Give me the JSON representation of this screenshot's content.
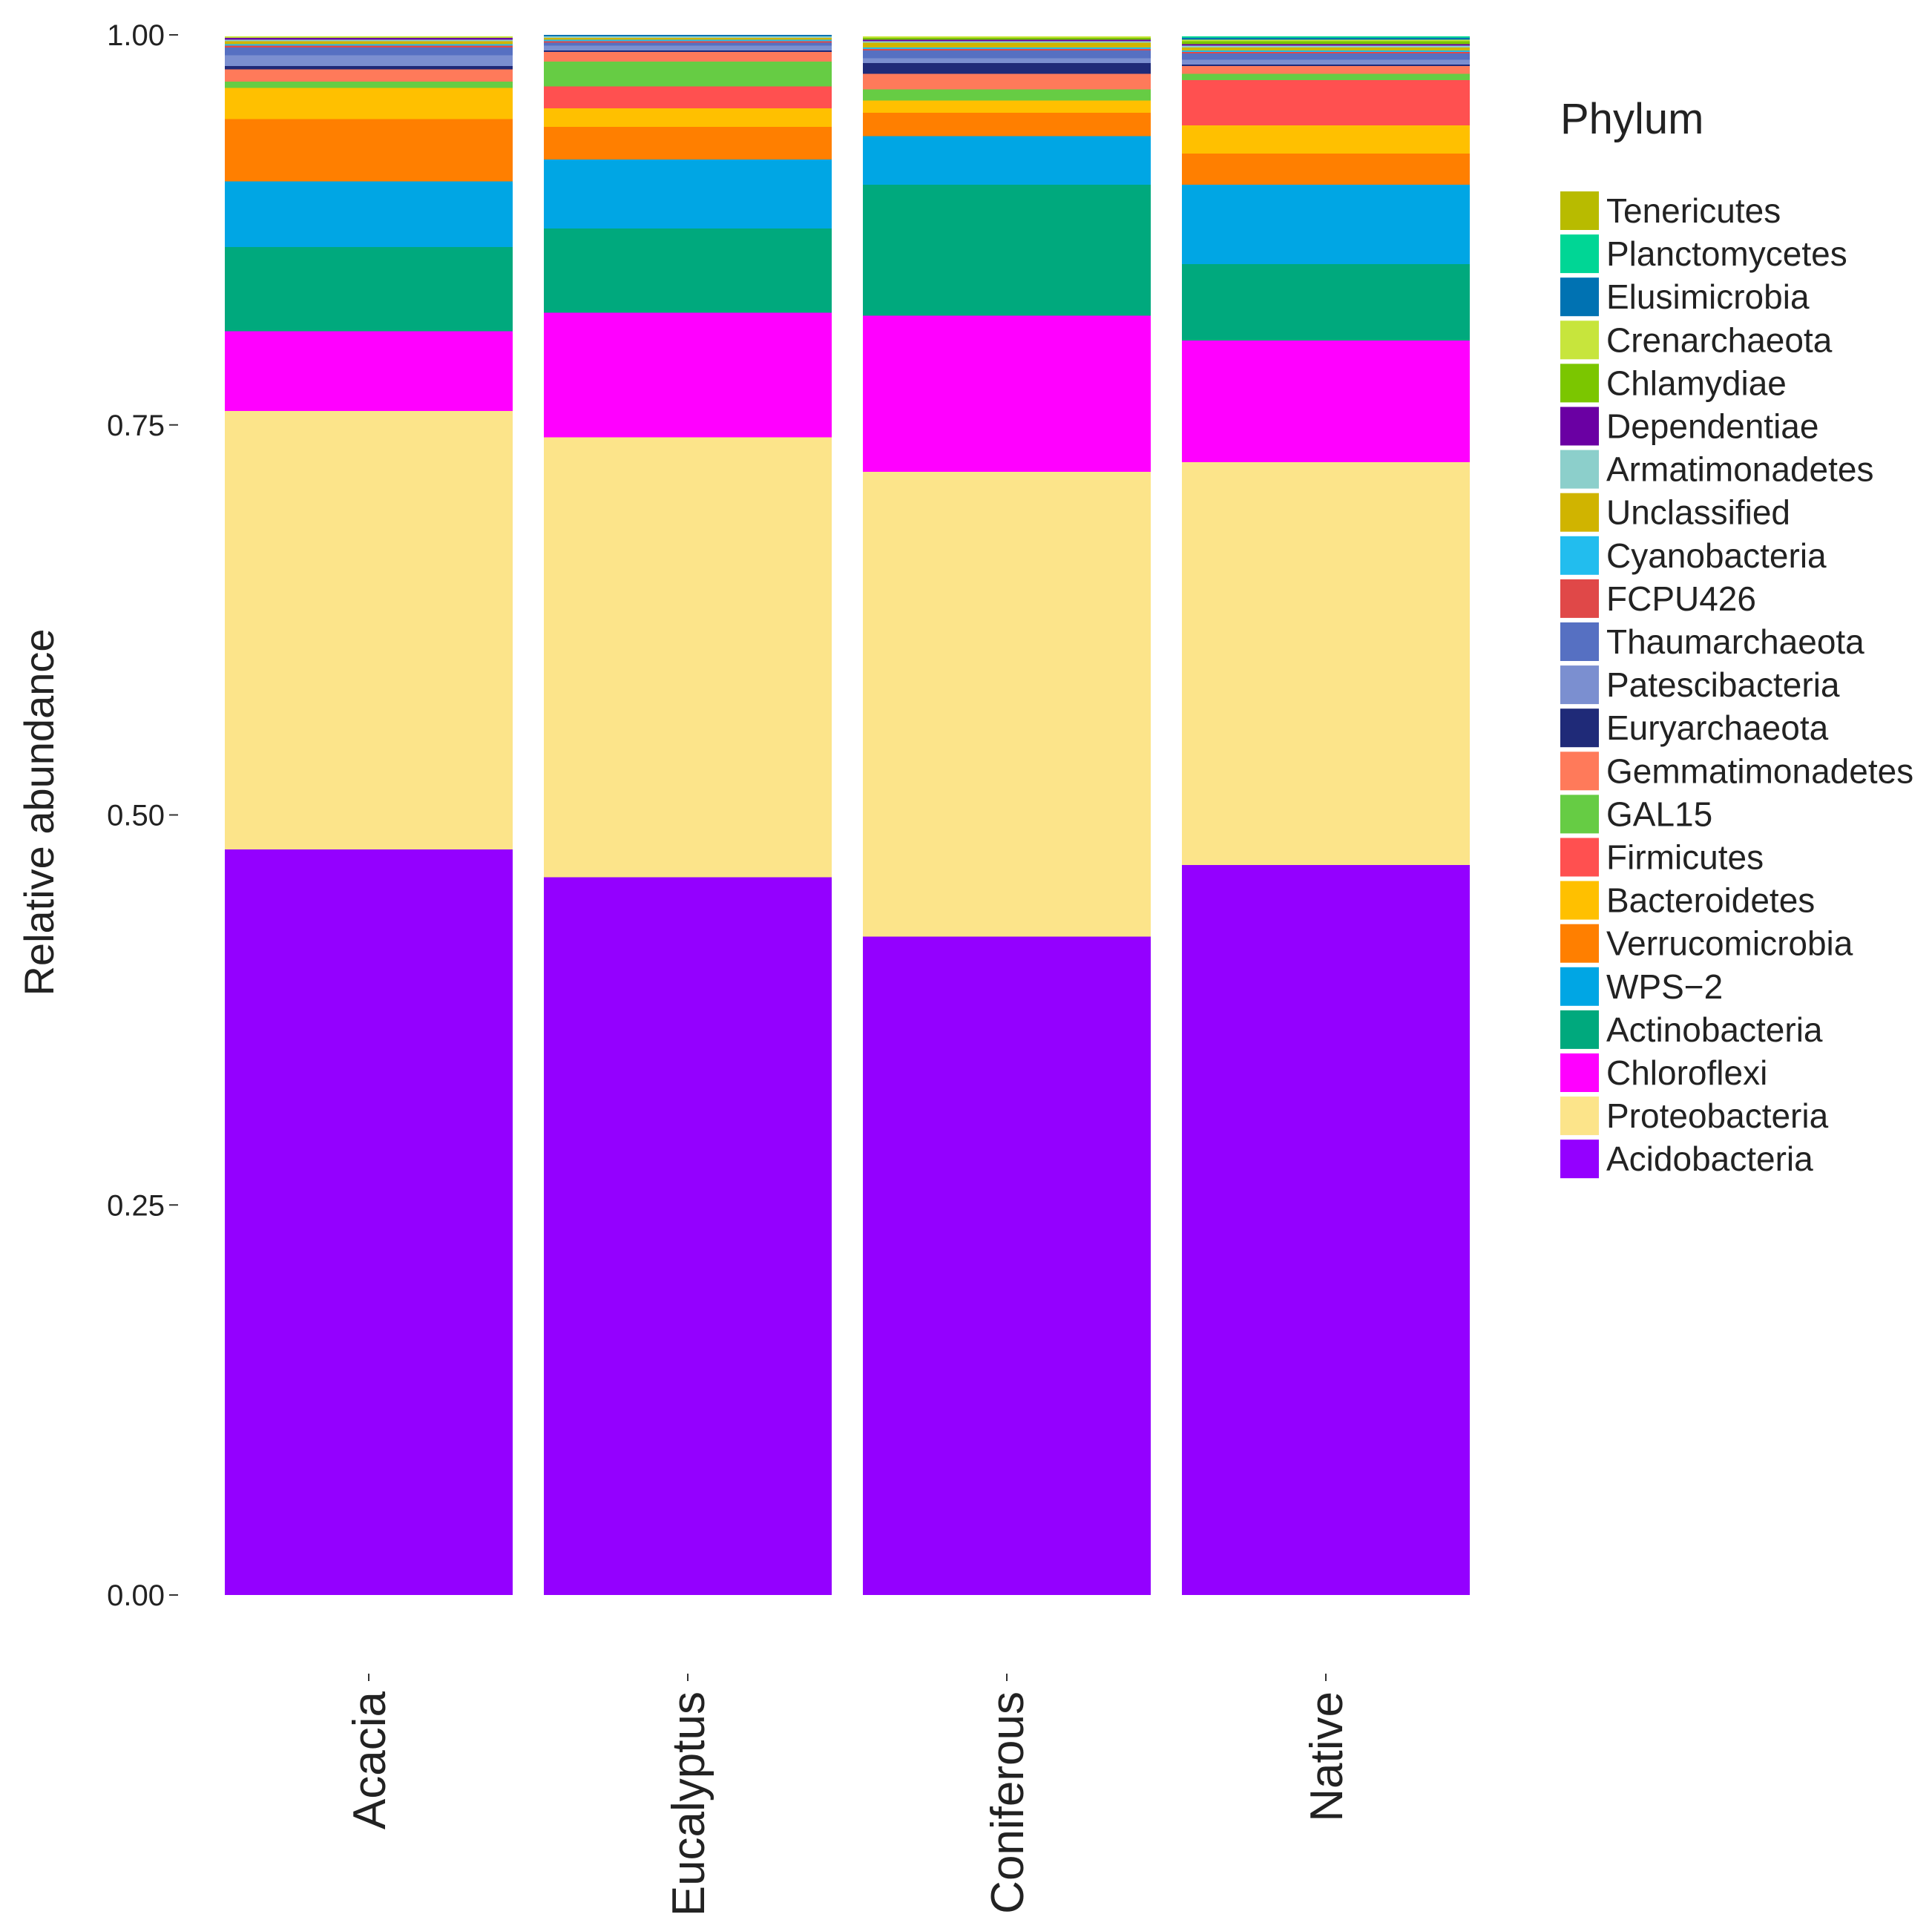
{
  "chart_data": {
    "type": "bar",
    "stacked": true,
    "title": "",
    "xlabel": "",
    "ylabel": "Relative abundance",
    "ylim": [
      0,
      1
    ],
    "yticks": [
      0,
      0.25,
      0.5,
      0.75,
      1
    ],
    "ytick_labels": [
      "0.00",
      "0.25",
      "0.50",
      "0.75",
      "1.00"
    ],
    "categories": [
      "Acacia",
      "Eucalyptus",
      "Coniferous",
      "Native"
    ],
    "legend": {
      "title": "Phylum",
      "position": "right"
    },
    "series": [
      {
        "name": "Acidobacteria",
        "color": "#9400FF",
        "values": [
          0.478,
          0.46,
          0.422,
          0.468
        ]
      },
      {
        "name": "Proteobacteria",
        "color": "#FCE48A",
        "values": [
          0.281,
          0.282,
          0.298,
          0.258
        ]
      },
      {
        "name": "Chloroflexi",
        "color": "#FF00FF",
        "values": [
          0.051,
          0.08,
          0.1,
          0.078
        ]
      },
      {
        "name": "Actinobacteria",
        "color": "#00A97D",
        "values": [
          0.054,
          0.054,
          0.084,
          0.049
        ]
      },
      {
        "name": "WPS−2",
        "color": "#00A6E4",
        "values": [
          0.042,
          0.044,
          0.031,
          0.051
        ]
      },
      {
        "name": "Verrucomicrobia",
        "color": "#FF7F00",
        "values": [
          0.04,
          0.021,
          0.015,
          0.02
        ]
      },
      {
        "name": "Bacteroidetes",
        "color": "#FFC000",
        "values": [
          0.02,
          0.012,
          0.008,
          0.018
        ]
      },
      {
        "name": "Firmicutes",
        "color": "#FF5050",
        "values": [
          0.0,
          0.014,
          0.0,
          0.029
        ]
      },
      {
        "name": "GAL15",
        "color": "#66CC44",
        "values": [
          0.004,
          0.016,
          0.007,
          0.004
        ]
      },
      {
        "name": "Gemmatimonadetes",
        "color": "#FF7A5A",
        "values": [
          0.008,
          0.006,
          0.01,
          0.005
        ]
      },
      {
        "name": "Euryarchaeota",
        "color": "#1F2A78",
        "values": [
          0.002,
          0.001,
          0.007,
          0.001
        ]
      },
      {
        "name": "Patescibacteria",
        "color": "#7B8FD0",
        "values": [
          0.007,
          0.003,
          0.003,
          0.003
        ]
      },
      {
        "name": "Thaumarchaeota",
        "color": "#5670C2",
        "values": [
          0.005,
          0.002,
          0.005,
          0.004
        ]
      },
      {
        "name": "FCPU426",
        "color": "#E04848",
        "values": [
          0.001,
          0.001,
          0.001,
          0.001
        ]
      },
      {
        "name": "Cyanobacteria",
        "color": "#22BDEE",
        "values": [
          0.001,
          0.001,
          0.001,
          0.001
        ]
      },
      {
        "name": "Unclassified",
        "color": "#D0B400",
        "values": [
          0.002,
          0.001,
          0.003,
          0.002
        ]
      },
      {
        "name": "Armatimonadetes",
        "color": "#8CCFCB",
        "values": [
          0.001,
          0.001,
          0.001,
          0.001
        ]
      },
      {
        "name": "Dependentiae",
        "color": "#6A00A3",
        "values": [
          0.001,
          0.0,
          0.001,
          0.001
        ]
      },
      {
        "name": "Chlamydiae",
        "color": "#7BC600",
        "values": [
          0.0,
          0.0,
          0.001,
          0.002
        ]
      },
      {
        "name": "Crenarchaeota",
        "color": "#C7E53C",
        "values": [
          0.001,
          0.0,
          0.001,
          0.001
        ]
      },
      {
        "name": "Elusimicrobia",
        "color": "#0072B2",
        "values": [
          0.0,
          0.001,
          0.0,
          0.001
        ]
      },
      {
        "name": "Planctomycetes",
        "color": "#00D695",
        "values": [
          0.0,
          0.0,
          0.0,
          0.001
        ]
      },
      {
        "name": "Tenericutes",
        "color": "#B8BB00",
        "values": [
          0.0,
          0.0,
          0.0,
          0.0
        ]
      }
    ]
  }
}
